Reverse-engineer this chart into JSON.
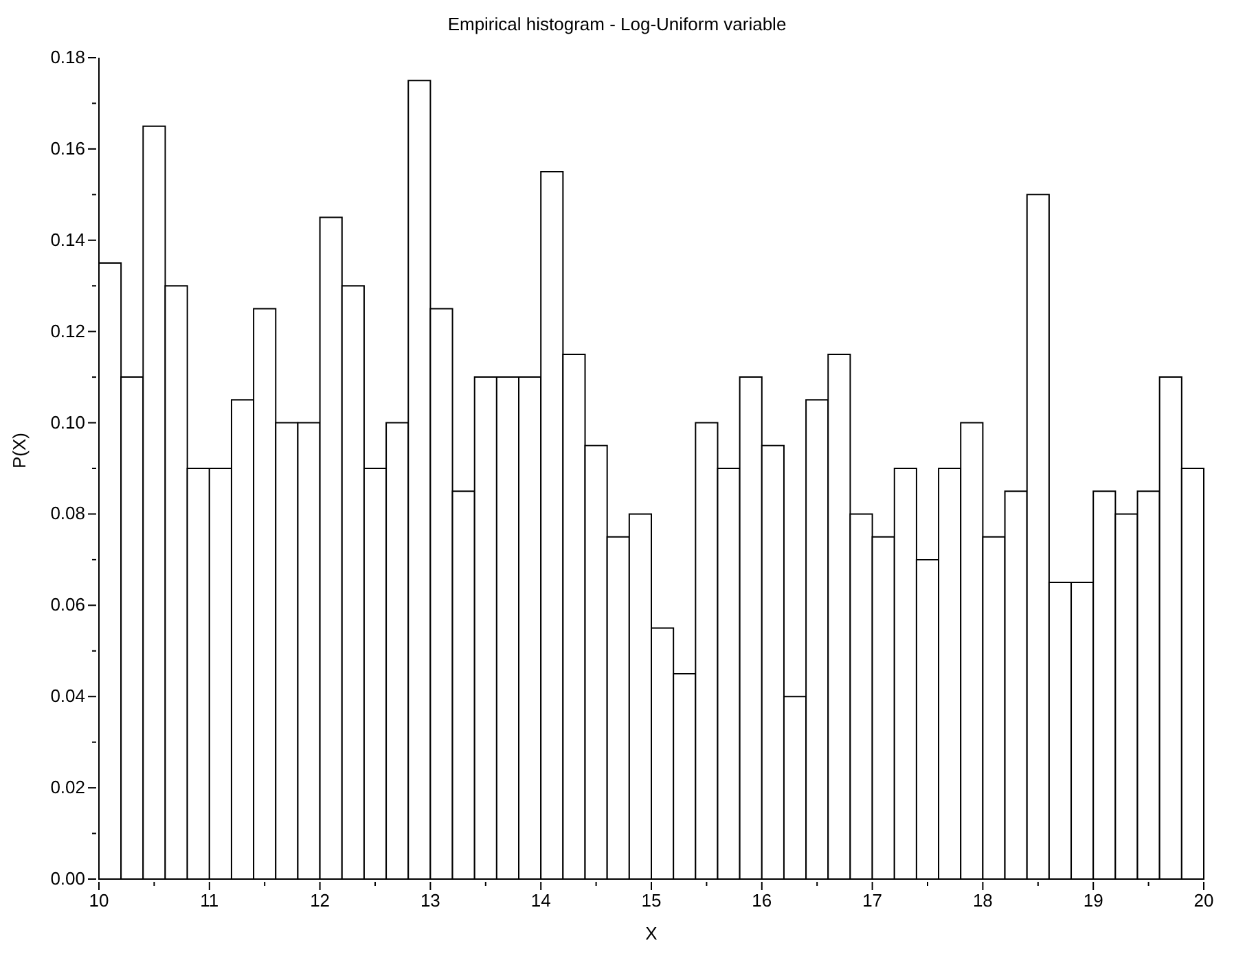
{
  "chart_data": {
    "type": "histogram",
    "title": "Empirical histogram - Log-Uniform variable",
    "xlabel": "X",
    "ylabel": "P(X)",
    "bins": [
      10,
      10.2,
      10.4,
      10.6,
      10.8,
      11,
      11.2,
      11.4,
      11.6,
      11.8,
      12,
      12.2,
      12.4,
      12.6,
      12.8,
      13,
      13.2,
      13.4,
      13.6,
      13.8,
      14,
      14.2,
      14.4,
      14.6,
      14.8,
      15,
      15.2,
      15.4,
      15.6,
      15.8,
      16,
      16.2,
      16.4,
      16.6,
      16.8,
      17,
      17.2,
      17.4,
      17.6,
      17.8,
      18,
      18.2,
      18.4,
      18.6,
      18.8,
      19,
      19.2,
      19.4,
      19.6,
      19.8,
      20
    ],
    "values": [
      0.135,
      0.11,
      0.165,
      0.13,
      0.09,
      0.09,
      0.105,
      0.125,
      0.1,
      0.1,
      0.145,
      0.13,
      0.09,
      0.1,
      0.175,
      0.125,
      0.085,
      0.11,
      0.11,
      0.11,
      0.155,
      0.115,
      0.095,
      0.075,
      0.08,
      0.055,
      0.045,
      0.1,
      0.09,
      0.11,
      0.095,
      0.04,
      0.105,
      0.115,
      0.08,
      0.075,
      0.09,
      0.07,
      0.09,
      0.1,
      0.075,
      0.085,
      0.15,
      0.065,
      0.065,
      0.085,
      0.08,
      0.085,
      0.11,
      0.09
    ],
    "color": "#ffffff",
    "xlim": [
      10,
      20
    ],
    "xticks": [
      10,
      {
        "value": 10.5,
        "label": null
      },
      11,
      {
        "value": 11.5,
        "label": null
      },
      12,
      {
        "value": 12.5,
        "label": null
      },
      13,
      {
        "value": 13.5,
        "label": null
      },
      14,
      {
        "value": 14.5,
        "label": null
      },
      15,
      {
        "value": 15.5,
        "label": null
      },
      16,
      {
        "value": 16.5,
        "label": null
      },
      17,
      {
        "value": 17.5,
        "label": null
      },
      18,
      {
        "value": 18.5,
        "label": null
      },
      19,
      {
        "value": 19.5,
        "label": null
      },
      20
    ],
    "ylim": [
      0,
      0.18
    ],
    "yticks": [
      {
        "value": 0,
        "label": "0.00"
      },
      {
        "value": 0.01,
        "label": null
      },
      {
        "value": 0.02,
        "label": "0.02"
      },
      {
        "value": 0.03,
        "label": null
      },
      {
        "value": 0.04,
        "label": "0.04"
      },
      {
        "value": 0.05,
        "label": null
      },
      {
        "value": 0.06,
        "label": "0.06"
      },
      {
        "value": 0.07,
        "label": null
      },
      {
        "value": 0.08,
        "label": "0.08"
      },
      {
        "value": 0.09,
        "label": null
      },
      {
        "value": 0.1,
        "label": "0.10"
      },
      {
        "value": 0.11,
        "label": null
      },
      {
        "value": 0.12,
        "label": "0.12"
      },
      {
        "value": 0.13,
        "label": null
      },
      {
        "value": 0.14,
        "label": "0.14"
      },
      {
        "value": 0.15,
        "label": null
      },
      {
        "value": 0.16,
        "label": "0.16"
      },
      {
        "value": 0.17,
        "label": null
      },
      {
        "value": 0.18,
        "label": "0.18"
      }
    ],
    "grid": false
  }
}
